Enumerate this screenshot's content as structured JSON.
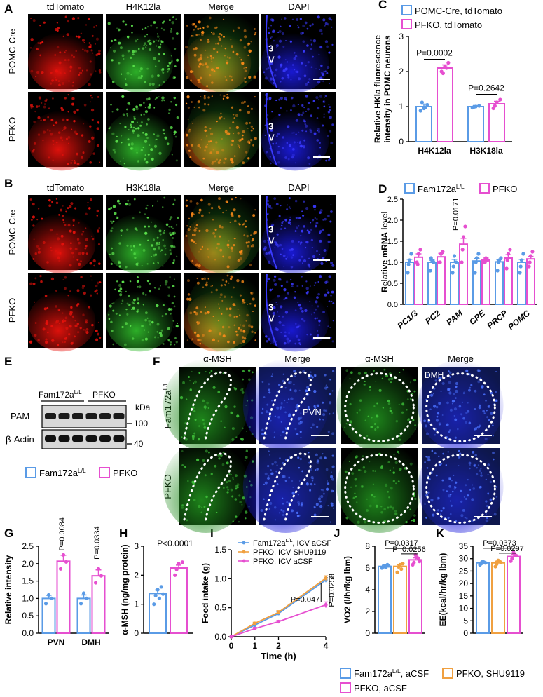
{
  "panel_letters": {
    "a": "A",
    "b": "B",
    "c": "C",
    "d": "D",
    "e": "E",
    "f": "F",
    "g": "G",
    "h": "H",
    "i": "I",
    "j": "J",
    "k": "K"
  },
  "colors": {
    "blue": "#5a9be6",
    "magenta": "#e64fd0",
    "orange": "#f0a040",
    "red": "#e8120c",
    "green": "#2fb82a",
    "dapi": "#1a1adc"
  },
  "panel_a": {
    "columns": [
      "tdTomato",
      "H4K12la",
      "Merge",
      "DAPI"
    ],
    "rows": [
      "POMC-Cre",
      "PFKO"
    ],
    "ventricle": "3\nV"
  },
  "panel_b": {
    "columns": [
      "tdTomato",
      "H3K18la",
      "Merge",
      "DAPI"
    ],
    "rows": [
      "POMC-Cre",
      "PFKO"
    ],
    "ventricle": "3\nV"
  },
  "panel_e": {
    "group_labels": [
      "Fam172a",
      "PFKO"
    ],
    "group_sup": "L/L",
    "rows": [
      "PAM",
      "β-Actin"
    ],
    "kda_label": "kDa",
    "kda_marks": [
      "100",
      "40"
    ],
    "legend": [
      {
        "label": "Fam172a",
        "sup": "L/L",
        "color": "#5a9be6"
      },
      {
        "label": "PFKO",
        "sup": "",
        "color": "#e64fd0"
      }
    ]
  },
  "panel_f": {
    "columns": [
      "α-MSH",
      "Merge",
      "α-MSH",
      "Merge"
    ],
    "rows": [
      "Fam172a",
      "PFKO"
    ],
    "row_sup": "L/L",
    "region_labels": [
      "PVN",
      "DMH"
    ]
  },
  "chart_data": [
    {
      "id": "C",
      "type": "bar",
      "legend": [
        "POMC-Cre, tdTomato",
        "PFKO, tdTomato"
      ],
      "ylabel": "Relative HKla fluorescence intensity in POMC neurons",
      "ylim": [
        0,
        3
      ],
      "yticks": [
        "0",
        "1",
        "2",
        "3"
      ],
      "categories": [
        "H4K12la",
        "H3K18la"
      ],
      "series": [
        {
          "name": "POMC-Cre, tdTomato",
          "values": [
            1.0,
            1.0
          ],
          "errors": [
            0.07,
            0.03
          ],
          "points": [
            [
              0.88,
              0.95,
              1.05,
              1.12,
              0.97
            ],
            [
              0.97,
              1.0,
              1.02,
              0.99
            ]
          ]
        },
        {
          "name": "PFKO, tdTomato",
          "values": [
            2.1,
            1.08
          ],
          "errors": [
            0.09,
            0.07
          ],
          "points": [
            [
              2.0,
              2.15,
              2.25,
              1.95,
              2.1
            ],
            [
              0.95,
              1.12,
              1.2,
              1.02
            ]
          ]
        }
      ],
      "annotations": [
        "P=0.0002",
        "P=0.2642"
      ]
    },
    {
      "id": "D",
      "type": "bar",
      "legend": [
        "Fam172a",
        "PFKO"
      ],
      "legend_sup": "L/L",
      "ylabel": "Relative mRNA level",
      "ylim": [
        0,
        2.5
      ],
      "yticks": [
        "0.0",
        "0.5",
        "1.0",
        "1.5",
        "2.0",
        "2.5"
      ],
      "categories": [
        "PC1/3",
        "PC2",
        "PAM",
        "CPE",
        "PRCP",
        "POMC"
      ],
      "series": [
        {
          "name": "Fam172a",
          "values": [
            1.0,
            1.0,
            1.0,
            1.03,
            1.01,
            1.0
          ],
          "errors": [
            0.07,
            0.05,
            0.07,
            0.06,
            0.05,
            0.07
          ],
          "points": [
            [
              0.75,
              1.05,
              1.2,
              0.95
            ],
            [
              0.8,
              1.05,
              1.0,
              1.1
            ],
            [
              0.75,
              1.15,
              1.0,
              0.9
            ],
            [
              0.75,
              1.1,
              1.2,
              1.0
            ],
            [
              0.8,
              1.05,
              1.1,
              1.0
            ],
            [
              0.75,
              1.05,
              1.2,
              0.9
            ]
          ]
        },
        {
          "name": "PFKO",
          "values": [
            1.12,
            1.13,
            1.43,
            1.05,
            1.1,
            1.08
          ],
          "errors": [
            0.08,
            0.08,
            0.14,
            0.05,
            0.08,
            0.06
          ],
          "points": [
            [
              1.0,
              1.2,
              1.3,
              0.95
            ],
            [
              1.0,
              1.2,
              1.25,
              1.0
            ],
            [
              1.0,
              1.6,
              1.85,
              1.3
            ],
            [
              1.0,
              1.1,
              1.05,
              1.0
            ],
            [
              0.85,
              1.2,
              1.3,
              1.05
            ],
            [
              0.9,
              1.15,
              1.25,
              1.0
            ]
          ]
        }
      ],
      "annotations": [
        "P=0.0171"
      ]
    },
    {
      "id": "G",
      "type": "bar",
      "ylabel": "Relative intensity",
      "ylim": [
        0,
        2.5
      ],
      "yticks": [
        "0.0",
        "0.5",
        "1.0",
        "1.5",
        "2.0",
        "2.5"
      ],
      "categories": [
        "PVN",
        "DMH"
      ],
      "series": [
        {
          "name": "Fam172a",
          "values": [
            1.0,
            1.0
          ],
          "errors": [
            0.09,
            0.1
          ],
          "points": [
            [
              0.85,
              1.1,
              1.0
            ],
            [
              0.85,
              1.15,
              1.0
            ]
          ]
        },
        {
          "name": "PFKO",
          "values": [
            2.07,
            1.65
          ],
          "errors": [
            0.17,
            0.17
          ],
          "points": [
            [
              1.85,
              2.25,
              2.05
            ],
            [
              1.45,
              1.85,
              1.65
            ]
          ]
        }
      ],
      "annotations": [
        "P=0.0084",
        "P=0.0334"
      ]
    },
    {
      "id": "H",
      "type": "bar",
      "ylabel": "α-MSH (ng/mg protein)",
      "ylim": [
        0,
        3
      ],
      "yticks": [
        "0",
        "1",
        "2",
        "3"
      ],
      "categories": [
        ""
      ],
      "series": [
        {
          "name": "Fam172a",
          "values": [
            1.37
          ],
          "errors": [
            0.12
          ],
          "points": [
            [
              1.0,
              1.5,
              1.6,
              1.3,
              1.2,
              1.35
            ]
          ]
        },
        {
          "name": "PFKO",
          "values": [
            2.25
          ],
          "errors": [
            0.1
          ],
          "points": [
            [
              2.0,
              2.4,
              2.45,
              2.2
            ]
          ]
        }
      ],
      "annotations": [
        "P<0.0001"
      ]
    },
    {
      "id": "I",
      "type": "line",
      "xlabel": "Time (h)",
      "ylabel": "Food intake (g)",
      "xlim": [
        0,
        4
      ],
      "xticks": [
        "0",
        "1",
        "2",
        "4"
      ],
      "ylim": [
        0,
        1.5
      ],
      "yticks": [
        "0.0",
        "0.5",
        "1.0",
        "1.5"
      ],
      "series": [
        {
          "name": "Fam172a, ICV aCSF",
          "name_sup": "L/L",
          "x": [
            0,
            1,
            2,
            4
          ],
          "y": [
            0,
            0.2,
            0.4,
            0.98
          ],
          "errors": [
            0,
            0.02,
            0.03,
            0.04
          ]
        },
        {
          "name": "PFKO, ICV SHU9119",
          "x": [
            0,
            1,
            2,
            4
          ],
          "y": [
            0,
            0.23,
            0.42,
            1.01
          ],
          "errors": [
            0,
            0.02,
            0.03,
            0.04
          ]
        },
        {
          "name": "PFKO, ICV aCSF",
          "x": [
            0,
            1,
            2,
            4
          ],
          "y": [
            0,
            0.14,
            0.26,
            0.55
          ],
          "errors": [
            0,
            0.02,
            0.02,
            0.05
          ]
        }
      ],
      "annotations": [
        "P=0.047",
        "P=0.0258"
      ]
    },
    {
      "id": "J",
      "type": "bar",
      "ylabel": "VO2 (l/hr/kg lbm)",
      "ylim": [
        0,
        8
      ],
      "yticks": [
        "0",
        "2",
        "4",
        "6",
        "8"
      ],
      "categories": [
        ""
      ],
      "series": [
        {
          "name": "Fam172a, aCSF",
          "values": [
            6.15
          ],
          "errors": [
            0.1
          ],
          "points": [
            [
              6.0,
              6.2,
              6.3,
              6.1,
              6.05,
              6.2
            ]
          ]
        },
        {
          "name": "PFKO, SHU9119",
          "values": [
            6.15
          ],
          "errors": [
            0.15
          ],
          "points": [
            [
              5.6,
              6.3,
              6.4,
              6.1,
              5.9
            ]
          ]
        },
        {
          "name": "PFKO, aCSF",
          "values": [
            6.75
          ],
          "errors": [
            0.18
          ],
          "points": [
            [
              6.3,
              7.2,
              6.9,
              6.5,
              7.0,
              6.6
            ]
          ]
        }
      ],
      "annotations": [
        "P=0.0317",
        "P=0.0256"
      ]
    },
    {
      "id": "K",
      "type": "bar",
      "ylabel": "EE(kcal/hr/kg lbm)",
      "ylim": [
        0,
        35
      ],
      "yticks": [
        "0",
        "5",
        "10",
        "15",
        "20",
        "25",
        "30",
        "35"
      ],
      "categories": [
        ""
      ],
      "series": [
        {
          "name": "Fam172a, aCSF",
          "values": [
            28.3
          ],
          "errors": [
            0.4
          ],
          "points": [
            [
              27.5,
              28.8,
              28.3,
              28.0,
              28.6
            ]
          ]
        },
        {
          "name": "PFKO, SHU9119",
          "values": [
            28.3
          ],
          "errors": [
            0.7
          ],
          "points": [
            [
              26.8,
              29.3,
              28.5,
              27.8,
              29.0
            ]
          ]
        },
        {
          "name": "PFKO, aCSF",
          "values": [
            30.9
          ],
          "errors": [
            0.8
          ],
          "points": [
            [
              29.0,
              32.5,
              31.2,
              30.0,
              31.8
            ]
          ]
        }
      ],
      "annotations": [
        "P=0.0373",
        "P=0.0297"
      ]
    }
  ],
  "bottom_legend": [
    {
      "label": "Fam172a",
      "sup": "L/L",
      "tail": ", aCSF",
      "color": "#5a9be6"
    },
    {
      "label": "PFKO, aCSF",
      "sup": "",
      "tail": "",
      "color": "#e64fd0"
    },
    {
      "label": "PFKO, SHU9119",
      "sup": "",
      "tail": "",
      "color": "#f0a040"
    }
  ]
}
